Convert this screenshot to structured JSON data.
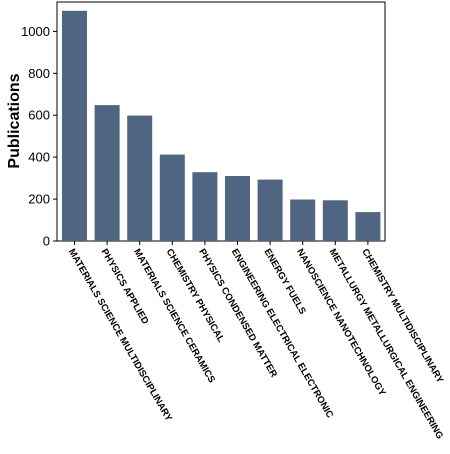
{
  "chart_data": {
    "type": "bar",
    "categories": [
      "MATERIALS SCIENCE MULTIDISCIPLINARY",
      "PHYSICS APPLIED",
      "MATERIALS SCIENCE CERAMICS",
      "CHEMISTRY PHYSICAL",
      "PHYSICS CONDENSED MATTER",
      "ENGINEERING ELECTRICAL ELECTRONIC",
      "ENERGY FUELS",
      "NANOSCIENCE NANOTECHNOLOGY",
      "METALLURGY METALLURGICAL ENGINEERING",
      "CHEMISTRY MULTIDISCIPLINARY"
    ],
    "values": [
      1098,
      648,
      598,
      412,
      328,
      310,
      293,
      198,
      194,
      138
    ],
    "title": "",
    "xlabel": "",
    "ylabel": "Publications",
    "ylim": [
      0,
      1140
    ],
    "yticks": [
      0,
      200,
      400,
      600,
      800,
      1000
    ],
    "grid": false,
    "bar_color": "#4f6582"
  }
}
